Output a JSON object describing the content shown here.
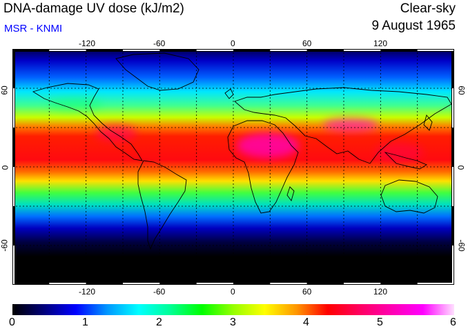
{
  "header": {
    "title": "DNA-damage UV dose (kJ/m2)",
    "subtitle": "MSR - KNMI",
    "sky": "Clear-sky",
    "date": "9 August 1965"
  },
  "map": {
    "lon_ticks": [
      "-120",
      "-60",
      "0",
      "60",
      "120"
    ],
    "lon_values": [
      -120,
      -60,
      0,
      60,
      120
    ],
    "lat_ticks": [
      "60",
      "0",
      "-60"
    ],
    "lat_values": [
      60,
      0,
      -60
    ],
    "lon_range": [
      -180,
      180
    ],
    "lat_range": [
      -90,
      90
    ],
    "grid": "dotted 30-degree graticule"
  },
  "colorbar": {
    "labels": [
      "0",
      "1",
      "2",
      "3",
      "4",
      "5",
      "6"
    ],
    "min": 0,
    "max": 6,
    "colors": [
      "#000000",
      "#00007a",
      "#0000ff",
      "#0096ff",
      "#00ffff",
      "#00ff96",
      "#00ff00",
      "#96ff00",
      "#ffff00",
      "#ff9600",
      "#ff0000",
      "#ff0060",
      "#ff00b0",
      "#ff00ff",
      "#ffe0ff"
    ]
  }
}
